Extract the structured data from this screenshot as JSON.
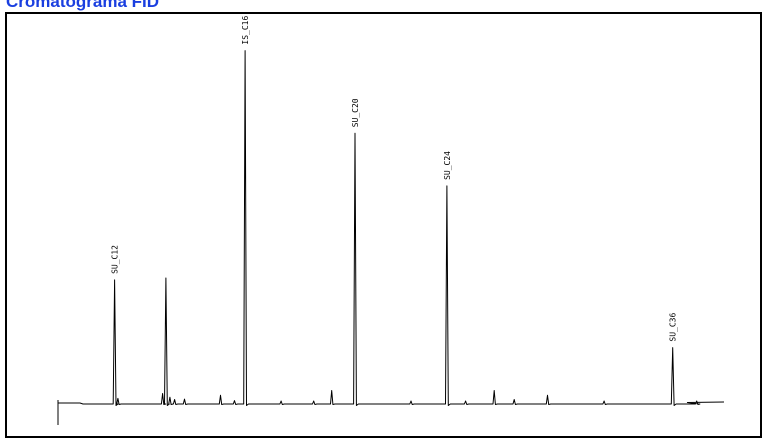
{
  "title": "Cromatograma FID",
  "colors": {
    "title": "#1a3fe0",
    "trace": "#000000",
    "frame": "#000000",
    "background": "#ffffff"
  },
  "chart_data": {
    "type": "line",
    "title": "Cromatograma FID",
    "xlabel": "",
    "ylabel": "",
    "grid": false,
    "legend": "none",
    "xlim": [
      0,
      100
    ],
    "ylim": [
      0,
      100
    ],
    "baseline": 0.8,
    "peaks": [
      {
        "label": "SU_C12",
        "x": 8.5,
        "height": 33.0
      },
      {
        "label": "",
        "x": 16.2,
        "height": 33.5
      },
      {
        "label": "IS_C16",
        "x": 28.1,
        "height": 94.0
      },
      {
        "label": "SU_C20",
        "x": 44.6,
        "height": 72.0
      },
      {
        "label": "SU_C24",
        "x": 58.4,
        "height": 58.0
      },
      {
        "label": "SU_C36",
        "x": 92.3,
        "height": 15.0
      }
    ],
    "minor_peaks": [
      {
        "x": 9.0,
        "height": 1.5
      },
      {
        "x": 15.7,
        "height": 2.8
      },
      {
        "x": 16.8,
        "height": 1.8
      },
      {
        "x": 17.5,
        "height": 1.2
      },
      {
        "x": 19.0,
        "height": 1.3
      },
      {
        "x": 24.4,
        "height": 2.3
      },
      {
        "x": 26.5,
        "height": 0.9
      },
      {
        "x": 33.5,
        "height": 0.8
      },
      {
        "x": 38.4,
        "height": 0.8
      },
      {
        "x": 41.1,
        "height": 3.6
      },
      {
        "x": 53.0,
        "height": 0.8
      },
      {
        "x": 61.2,
        "height": 0.8
      },
      {
        "x": 65.5,
        "height": 3.6
      },
      {
        "x": 68.5,
        "height": 1.2
      },
      {
        "x": 73.5,
        "height": 2.3
      },
      {
        "x": 82.0,
        "height": 0.8
      },
      {
        "x": 95.9,
        "height": 0.8
      }
    ]
  }
}
